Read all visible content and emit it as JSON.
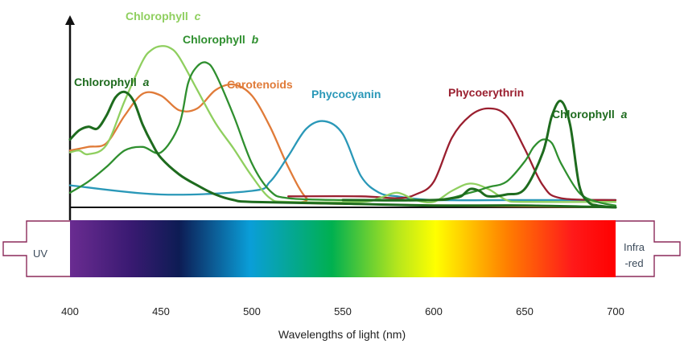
{
  "chart_data": {
    "type": "line",
    "title": "",
    "xlabel": "Wavelengths of light (nm)",
    "ylabel": "",
    "xlim": [
      400,
      700
    ],
    "ylim": [
      0,
      100
    ],
    "grid": false,
    "x_ticks": [
      400,
      450,
      500,
      550,
      600,
      650,
      700
    ],
    "spectrum_left_label": "UV",
    "spectrum_right_label_lines": [
      "Infra",
      "-red"
    ],
    "series": [
      {
        "name": "Chlorophyll a (blue peak)",
        "label": "Chlorophyll",
        "label_italic": "a",
        "color": "#1e6b1e",
        "points": [
          [
            400,
            37
          ],
          [
            405,
            42
          ],
          [
            410,
            44
          ],
          [
            415,
            43
          ],
          [
            420,
            50
          ],
          [
            425,
            60
          ],
          [
            430,
            63
          ],
          [
            435,
            58
          ],
          [
            440,
            45
          ],
          [
            445,
            35
          ],
          [
            450,
            27
          ],
          [
            460,
            18
          ],
          [
            470,
            12
          ],
          [
            480,
            7
          ],
          [
            490,
            4
          ],
          [
            500,
            3
          ],
          [
            550,
            2
          ],
          [
            600,
            1
          ],
          [
            650,
            1
          ],
          [
            700,
            0
          ]
        ]
      },
      {
        "name": "Chlorophyll a (red peak)",
        "label": "Chlorophyll",
        "label_italic": "a",
        "color": "#1e6b1e",
        "points": [
          [
            550,
            4
          ],
          [
            600,
            4
          ],
          [
            610,
            5
          ],
          [
            615,
            6
          ],
          [
            620,
            10
          ],
          [
            625,
            9
          ],
          [
            630,
            6
          ],
          [
            640,
            7
          ],
          [
            650,
            10
          ],
          [
            660,
            30
          ],
          [
            665,
            50
          ],
          [
            670,
            58
          ],
          [
            675,
            45
          ],
          [
            680,
            12
          ],
          [
            685,
            3
          ],
          [
            690,
            1
          ],
          [
            700,
            0
          ]
        ]
      },
      {
        "name": "Chlorophyll b",
        "label": "Chlorophyll",
        "label_italic": "b",
        "color": "#2f8f2f",
        "points": [
          [
            400,
            8
          ],
          [
            410,
            14
          ],
          [
            420,
            22
          ],
          [
            430,
            31
          ],
          [
            440,
            33
          ],
          [
            450,
            30
          ],
          [
            460,
            45
          ],
          [
            465,
            68
          ],
          [
            470,
            77
          ],
          [
            475,
            79
          ],
          [
            480,
            73
          ],
          [
            490,
            50
          ],
          [
            500,
            24
          ],
          [
            510,
            9
          ],
          [
            520,
            5
          ],
          [
            550,
            4
          ],
          [
            600,
            4
          ],
          [
            620,
            8
          ],
          [
            630,
            11
          ],
          [
            640,
            14
          ],
          [
            650,
            25
          ],
          [
            655,
            33
          ],
          [
            660,
            37
          ],
          [
            665,
            35
          ],
          [
            670,
            24
          ],
          [
            680,
            8
          ],
          [
            690,
            3
          ],
          [
            700,
            1
          ]
        ]
      },
      {
        "name": "Chlorophyll c",
        "label": "Chlorophyll",
        "label_italic": "c",
        "color": "#8fcf5f",
        "points": [
          [
            400,
            30
          ],
          [
            405,
            31
          ],
          [
            410,
            29
          ],
          [
            420,
            34
          ],
          [
            430,
            58
          ],
          [
            440,
            80
          ],
          [
            445,
            86
          ],
          [
            450,
            88
          ],
          [
            455,
            87
          ],
          [
            460,
            82
          ],
          [
            470,
            64
          ],
          [
            480,
            46
          ],
          [
            490,
            32
          ],
          [
            500,
            17
          ],
          [
            510,
            5
          ],
          [
            520,
            3
          ],
          [
            560,
            3
          ],
          [
            570,
            5
          ],
          [
            580,
            8
          ],
          [
            590,
            4
          ],
          [
            600,
            3
          ],
          [
            610,
            9
          ],
          [
            620,
            13
          ],
          [
            630,
            10
          ],
          [
            640,
            4
          ],
          [
            650,
            3
          ],
          [
            700,
            3
          ]
        ]
      },
      {
        "name": "Carotenoids",
        "label": "Carotenoids",
        "color": "#e07b39",
        "points": [
          [
            400,
            31
          ],
          [
            410,
            33
          ],
          [
            420,
            35
          ],
          [
            430,
            50
          ],
          [
            440,
            62
          ],
          [
            450,
            61
          ],
          [
            460,
            53
          ],
          [
            470,
            54
          ],
          [
            480,
            64
          ],
          [
            490,
            67
          ],
          [
            500,
            61
          ],
          [
            510,
            44
          ],
          [
            520,
            22
          ],
          [
            530,
            5
          ],
          [
            540,
            2
          ],
          [
            700,
            0
          ]
        ]
      },
      {
        "name": "Phycocyanin",
        "label": "Phycocyanin",
        "color": "#2a98b8",
        "points": [
          [
            400,
            12
          ],
          [
            450,
            7
          ],
          [
            500,
            9
          ],
          [
            510,
            14
          ],
          [
            520,
            28
          ],
          [
            530,
            43
          ],
          [
            540,
            47
          ],
          [
            550,
            40
          ],
          [
            560,
            17
          ],
          [
            570,
            8
          ],
          [
            580,
            6
          ],
          [
            600,
            4
          ],
          [
            650,
            4
          ],
          [
            700,
            4
          ]
        ]
      },
      {
        "name": "Phycoerythrin",
        "label": "Phycoerythrin",
        "color": "#9a1f2f",
        "points": [
          [
            520,
            6
          ],
          [
            560,
            6
          ],
          [
            580,
            5
          ],
          [
            590,
            7
          ],
          [
            600,
            14
          ],
          [
            610,
            38
          ],
          [
            620,
            50
          ],
          [
            630,
            54
          ],
          [
            640,
            50
          ],
          [
            650,
            32
          ],
          [
            660,
            12
          ],
          [
            670,
            5
          ],
          [
            700,
            4
          ]
        ]
      }
    ],
    "labels_text": {
      "chl_a_left": "Chlorophyll",
      "chl_a_right": "Chlorophyll",
      "chl_b": "Chlorophyll",
      "chl_c": "Chlorophyll",
      "italic_a": "a",
      "italic_b": "b",
      "italic_c": "c",
      "carotenoids": "Carotenoids",
      "phycocyanin": "Phycocyanin",
      "phycoerythrin": "Phycoerythrin"
    },
    "colors": {
      "axis": "#111111",
      "arrow_outline": "#8b2a5a",
      "chl_a": "#1e6b1e",
      "chl_b": "#2f8f2f",
      "chl_c": "#8fcf5f",
      "carotenoids": "#e07b39",
      "phycocyanin": "#2a98b8",
      "phycoerythrin": "#9a1f2f",
      "spectrum_stops": [
        "#6a2c91",
        "#3a1a72",
        "#0d1c54",
        "#0a9ed8",
        "#00b050",
        "#b5e61d",
        "#ffff00",
        "#ff8000",
        "#ff1a1a",
        "#ff0000"
      ]
    }
  }
}
